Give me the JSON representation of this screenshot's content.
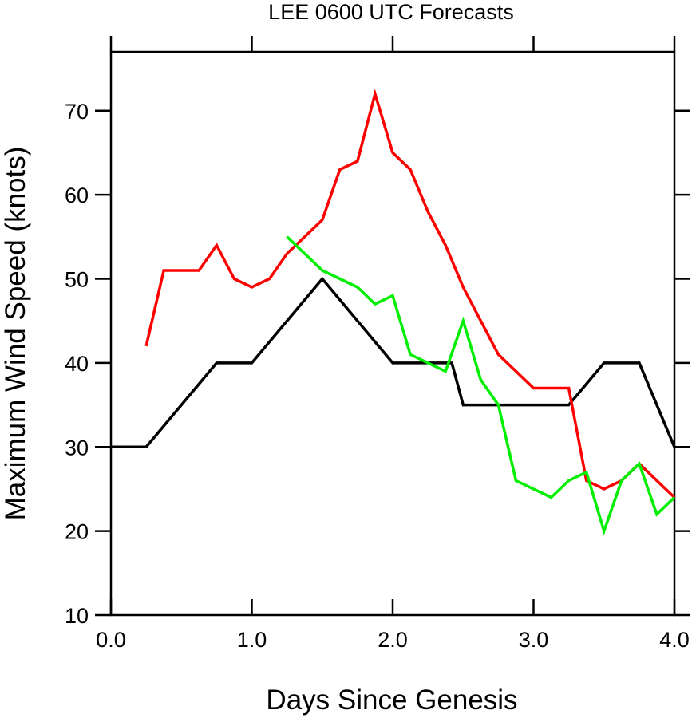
{
  "chart_data": {
    "type": "line",
    "title": "LEE 0600 UTC Forecasts",
    "xlabel": "Days Since Genesis",
    "ylabel": "Maximum Wind Speed (knots)",
    "xlim": [
      0,
      4
    ],
    "ylim": [
      10,
      77
    ],
    "x_ticks": [
      0,
      1,
      2,
      3,
      4
    ],
    "x_tick_labels": [
      "0.0",
      "1.0",
      "2.0",
      "3.0",
      "4.0"
    ],
    "y_ticks": [
      10,
      20,
      30,
      40,
      50,
      60,
      70
    ],
    "y_tick_labels": [
      "10",
      "20",
      "30",
      "40",
      "50",
      "60",
      "70"
    ],
    "grid": false,
    "legend": "none",
    "series": [
      {
        "color": "#000000",
        "x": [
          0,
          0.25,
          0.75,
          1.0,
          1.5,
          2.0,
          2.42,
          2.5,
          3.25,
          3.5,
          3.75,
          4.0
        ],
        "values": [
          30,
          30,
          40,
          40,
          50,
          40,
          40,
          35,
          35,
          40,
          40,
          30
        ]
      },
      {
        "color": "#ff0000",
        "x": [
          0.25,
          0.375,
          0.5,
          0.625,
          0.75,
          0.875,
          1.0,
          1.125,
          1.25,
          1.5,
          1.625,
          1.75,
          1.875,
          2.0,
          2.125,
          2.25,
          2.375,
          2.5,
          2.75,
          3.0,
          3.25,
          3.375,
          3.5,
          3.625,
          3.75,
          4.0
        ],
        "values": [
          42,
          51,
          51,
          51,
          54,
          50,
          49,
          50,
          53,
          57,
          63,
          64,
          72,
          65,
          63,
          58,
          54,
          49,
          41,
          37,
          37,
          26,
          25,
          26,
          28,
          24
        ]
      },
      {
        "color": "#00ee00",
        "x": [
          1.25,
          1.5,
          1.75,
          1.875,
          2.0,
          2.125,
          2.375,
          2.5,
          2.625,
          2.75,
          2.875,
          3.125,
          3.25,
          3.375,
          3.5,
          3.625,
          3.75,
          3.875,
          4.0
        ],
        "values": [
          55,
          51,
          49,
          47,
          48,
          41,
          39,
          45,
          38,
          35,
          26,
          24,
          26,
          27,
          20,
          26,
          28,
          22,
          24
        ]
      }
    ]
  }
}
